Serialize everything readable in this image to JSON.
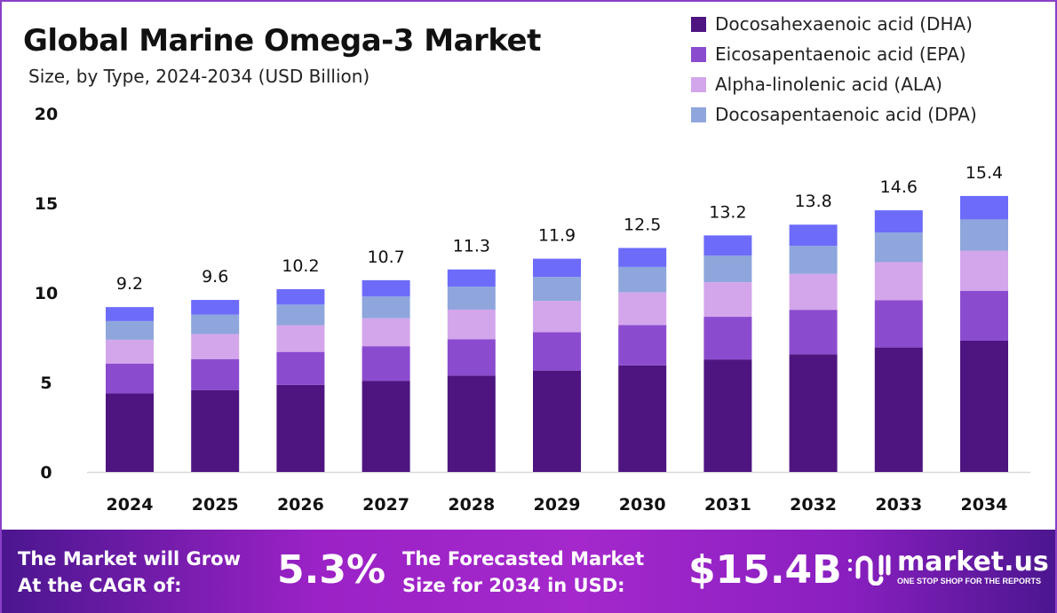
{
  "chart_data": {
    "type": "bar",
    "stacked": true,
    "title": "Global Marine Omega-3 Market",
    "subtitle": "Size, by Type, 2024-2034 (USD Billion)",
    "categories": [
      "2024",
      "2025",
      "2026",
      "2027",
      "2028",
      "2029",
      "2030",
      "2031",
      "2032",
      "2033",
      "2034"
    ],
    "totals": [
      "9.2",
      "9.6",
      "10.2",
      "10.7",
      "11.3",
      "11.9",
      "12.5",
      "13.2",
      "13.8",
      "14.6",
      "15.4"
    ],
    "series": [
      {
        "name": "Docosahexaenoic acid (DHA)",
        "color": "#4e1581",
        "values": [
          4.38,
          4.57,
          4.86,
          5.09,
          5.38,
          5.66,
          5.95,
          6.28,
          6.57,
          6.95,
          7.33
        ]
      },
      {
        "name": "Eicosapentaenoic acid (EPA)",
        "color": "#8b4bcf",
        "values": [
          1.66,
          1.73,
          1.84,
          1.93,
          2.03,
          2.14,
          2.25,
          2.38,
          2.48,
          2.63,
          2.77
        ]
      },
      {
        "name": "Alpha-linolenic acid (ALA)",
        "color": "#d3a6eb",
        "values": [
          1.34,
          1.4,
          1.49,
          1.56,
          1.65,
          1.74,
          1.83,
          1.93,
          2.01,
          2.13,
          2.25
        ]
      },
      {
        "name": "Docosapentaenoic acid (DPA)",
        "color": "#8ea6dc",
        "values": [
          1.04,
          1.08,
          1.15,
          1.21,
          1.28,
          1.34,
          1.41,
          1.49,
          1.56,
          1.65,
          1.74
        ]
      },
      {
        "color": "#6d6bfa",
        "values": [
          0.78,
          0.82,
          0.86,
          0.91,
          0.96,
          1.02,
          1.06,
          1.12,
          1.18,
          1.24,
          1.31
        ]
      }
    ],
    "ylim": [
      0,
      20
    ],
    "yticks": [
      "0",
      "5",
      "10",
      "15",
      "20"
    ],
    "grid": false,
    "legend": "top-right"
  },
  "banner": {
    "cagr_label_1": "The Market will Grow",
    "cagr_label_2": "At the CAGR of:",
    "cagr_value": "5.3%",
    "forecast_label_1": "The Forecasted Market",
    "forecast_label_2": "Size for 2034 in USD:",
    "forecast_value": "$15.4B",
    "logo_text": "market.us",
    "logo_tagline": "ONE STOP SHOP FOR THE REPORTS"
  }
}
